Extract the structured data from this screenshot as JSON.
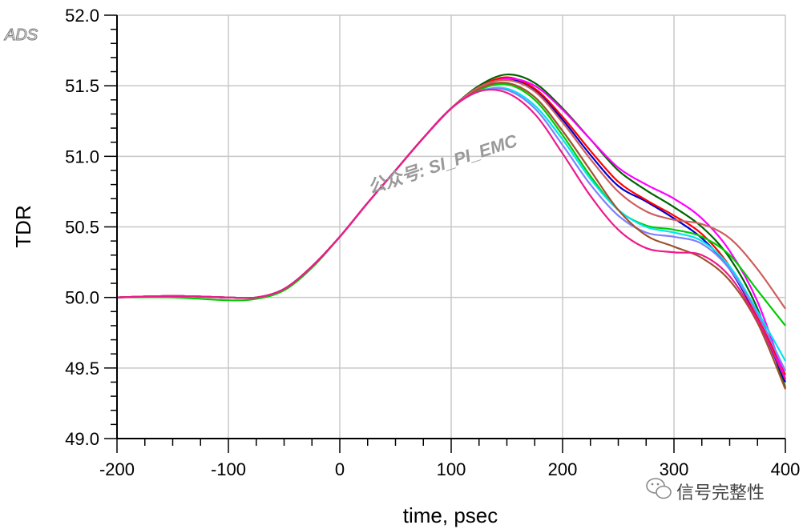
{
  "logo": "ADS",
  "watermark": "公众号: SI_PI_EMC",
  "wechat_tag": "信号完整性",
  "chart_data": {
    "type": "line",
    "xlabel": "time, psec",
    "ylabel": "TDR",
    "xlim": [
      -200,
      400
    ],
    "ylim": [
      49.0,
      52.0
    ],
    "xticks": [
      -200,
      -100,
      0,
      100,
      200,
      300,
      400
    ],
    "yticks": [
      49.0,
      49.5,
      50.0,
      50.5,
      51.0,
      51.5,
      52.0
    ],
    "ytick_labels": [
      "49.0",
      "49.5",
      "50.0",
      "50.5",
      "51.0",
      "51.5",
      "52.0"
    ],
    "grid": true,
    "series": [
      {
        "color": "#006400",
        "points": [
          [
            -200,
            50.0
          ],
          [
            -150,
            50.01
          ],
          [
            -100,
            50.0
          ],
          [
            -75,
            50.0
          ],
          [
            -50,
            50.06
          ],
          [
            -25,
            50.22
          ],
          [
            0,
            50.43
          ],
          [
            25,
            50.67
          ],
          [
            50,
            50.9
          ],
          [
            75,
            51.13
          ],
          [
            100,
            51.34
          ],
          [
            125,
            51.5
          ],
          [
            150,
            51.58
          ],
          [
            175,
            51.52
          ],
          [
            200,
            51.34
          ],
          [
            225,
            51.12
          ],
          [
            250,
            50.9
          ],
          [
            275,
            50.76
          ],
          [
            300,
            50.64
          ],
          [
            325,
            50.5
          ],
          [
            350,
            50.28
          ],
          [
            375,
            49.92
          ],
          [
            400,
            49.36
          ]
        ]
      },
      {
        "color": "#0000cd",
        "points": [
          [
            -200,
            50.0
          ],
          [
            -150,
            50.01
          ],
          [
            -100,
            50.0
          ],
          [
            -75,
            50.0
          ],
          [
            -50,
            50.06
          ],
          [
            -25,
            50.22
          ],
          [
            0,
            50.43
          ],
          [
            25,
            50.67
          ],
          [
            50,
            50.9
          ],
          [
            75,
            51.13
          ],
          [
            100,
            51.34
          ],
          [
            125,
            51.49
          ],
          [
            150,
            51.55
          ],
          [
            175,
            51.47
          ],
          [
            200,
            51.26
          ],
          [
            225,
            51.01
          ],
          [
            250,
            50.79
          ],
          [
            275,
            50.68
          ],
          [
            300,
            50.56
          ],
          [
            325,
            50.42
          ],
          [
            350,
            50.2
          ],
          [
            375,
            49.85
          ],
          [
            400,
            49.4
          ]
        ]
      },
      {
        "color": "#ff0000",
        "points": [
          [
            -200,
            50.0
          ],
          [
            -150,
            50.01
          ],
          [
            -100,
            50.0
          ],
          [
            -75,
            50.0
          ],
          [
            -50,
            50.06
          ],
          [
            -25,
            50.22
          ],
          [
            0,
            50.43
          ],
          [
            25,
            50.67
          ],
          [
            50,
            50.9
          ],
          [
            75,
            51.13
          ],
          [
            100,
            51.34
          ],
          [
            125,
            51.49
          ],
          [
            150,
            51.56
          ],
          [
            175,
            51.48
          ],
          [
            200,
            51.28
          ],
          [
            225,
            51.04
          ],
          [
            250,
            50.82
          ],
          [
            275,
            50.69
          ],
          [
            300,
            50.58
          ],
          [
            325,
            50.45
          ],
          [
            350,
            50.22
          ],
          [
            375,
            49.86
          ],
          [
            400,
            49.45
          ]
        ]
      },
      {
        "color": "#ff00ff",
        "points": [
          [
            -200,
            50.0
          ],
          [
            -150,
            50.01
          ],
          [
            -100,
            50.0
          ],
          [
            -75,
            50.0
          ],
          [
            -50,
            50.06
          ],
          [
            -25,
            50.22
          ],
          [
            0,
            50.43
          ],
          [
            25,
            50.67
          ],
          [
            50,
            50.9
          ],
          [
            75,
            51.13
          ],
          [
            100,
            51.34
          ],
          [
            125,
            51.48
          ],
          [
            150,
            51.55
          ],
          [
            175,
            51.5
          ],
          [
            200,
            51.33
          ],
          [
            225,
            51.12
          ],
          [
            250,
            50.92
          ],
          [
            275,
            50.8
          ],
          [
            300,
            50.7
          ],
          [
            325,
            50.56
          ],
          [
            350,
            50.33
          ],
          [
            375,
            49.97
          ],
          [
            400,
            49.42
          ]
        ]
      },
      {
        "color": "#00cc00",
        "points": [
          [
            -200,
            50.0
          ],
          [
            -150,
            50.0
          ],
          [
            -100,
            49.98
          ],
          [
            -75,
            49.99
          ],
          [
            -50,
            50.05
          ],
          [
            -25,
            50.21
          ],
          [
            0,
            50.43
          ],
          [
            25,
            50.67
          ],
          [
            50,
            50.9
          ],
          [
            75,
            51.13
          ],
          [
            100,
            51.34
          ],
          [
            125,
            51.47
          ],
          [
            150,
            51.51
          ],
          [
            175,
            51.4
          ],
          [
            200,
            51.15
          ],
          [
            225,
            50.86
          ],
          [
            250,
            50.62
          ],
          [
            275,
            50.51
          ],
          [
            300,
            50.48
          ],
          [
            325,
            50.43
          ],
          [
            350,
            50.3
          ],
          [
            375,
            50.05
          ],
          [
            400,
            49.8
          ]
        ]
      },
      {
        "color": "#00e5ee",
        "points": [
          [
            -200,
            50.0
          ],
          [
            -150,
            50.01
          ],
          [
            -100,
            50.0
          ],
          [
            -75,
            50.0
          ],
          [
            -50,
            50.06
          ],
          [
            -25,
            50.22
          ],
          [
            0,
            50.43
          ],
          [
            25,
            50.67
          ],
          [
            50,
            50.9
          ],
          [
            75,
            51.13
          ],
          [
            100,
            51.34
          ],
          [
            125,
            51.46
          ],
          [
            150,
            51.48
          ],
          [
            175,
            51.36
          ],
          [
            200,
            51.12
          ],
          [
            225,
            50.84
          ],
          [
            250,
            50.62
          ],
          [
            275,
            50.5
          ],
          [
            300,
            50.46
          ],
          [
            325,
            50.4
          ],
          [
            350,
            50.22
          ],
          [
            375,
            49.9
          ],
          [
            400,
            49.55
          ]
        ]
      },
      {
        "color": "#8080ff",
        "points": [
          [
            -200,
            50.0
          ],
          [
            -150,
            50.01
          ],
          [
            -100,
            50.0
          ],
          [
            -75,
            50.0
          ],
          [
            -50,
            50.06
          ],
          [
            -25,
            50.22
          ],
          [
            0,
            50.43
          ],
          [
            25,
            50.67
          ],
          [
            50,
            50.9
          ],
          [
            75,
            51.13
          ],
          [
            100,
            51.34
          ],
          [
            125,
            51.46
          ],
          [
            150,
            51.47
          ],
          [
            175,
            51.34
          ],
          [
            200,
            51.08
          ],
          [
            225,
            50.8
          ],
          [
            250,
            50.58
          ],
          [
            275,
            50.46
          ],
          [
            300,
            50.43
          ],
          [
            325,
            50.38
          ],
          [
            350,
            50.2
          ],
          [
            375,
            49.88
          ],
          [
            400,
            49.48
          ]
        ]
      },
      {
        "color": "#a0522d",
        "points": [
          [
            -200,
            50.0
          ],
          [
            -150,
            50.01
          ],
          [
            -100,
            50.0
          ],
          [
            -75,
            50.0
          ],
          [
            -50,
            50.06
          ],
          [
            -25,
            50.22
          ],
          [
            0,
            50.43
          ],
          [
            25,
            50.67
          ],
          [
            50,
            50.9
          ],
          [
            75,
            51.13
          ],
          [
            100,
            51.34
          ],
          [
            125,
            51.48
          ],
          [
            150,
            51.52
          ],
          [
            175,
            51.42
          ],
          [
            200,
            51.18
          ],
          [
            225,
            50.9
          ],
          [
            250,
            50.62
          ],
          [
            275,
            50.44
          ],
          [
            300,
            50.36
          ],
          [
            325,
            50.28
          ],
          [
            350,
            50.12
          ],
          [
            375,
            49.82
          ],
          [
            400,
            49.35
          ]
        ]
      },
      {
        "color": "#cd6060",
        "points": [
          [
            -200,
            50.0
          ],
          [
            -150,
            50.01
          ],
          [
            -100,
            50.0
          ],
          [
            -75,
            50.0
          ],
          [
            -50,
            50.06
          ],
          [
            -25,
            50.22
          ],
          [
            0,
            50.43
          ],
          [
            25,
            50.67
          ],
          [
            50,
            50.9
          ],
          [
            75,
            51.13
          ],
          [
            100,
            51.34
          ],
          [
            125,
            51.49
          ],
          [
            150,
            51.54
          ],
          [
            175,
            51.46
          ],
          [
            200,
            51.24
          ],
          [
            225,
            50.98
          ],
          [
            250,
            50.75
          ],
          [
            275,
            50.61
          ],
          [
            300,
            50.55
          ],
          [
            325,
            50.52
          ],
          [
            350,
            50.42
          ],
          [
            375,
            50.2
          ],
          [
            400,
            49.92
          ]
        ]
      },
      {
        "color": "#ee1a8c",
        "points": [
          [
            -200,
            50.0
          ],
          [
            -150,
            50.01
          ],
          [
            -100,
            50.0
          ],
          [
            -75,
            50.0
          ],
          [
            -50,
            50.06
          ],
          [
            -25,
            50.22
          ],
          [
            0,
            50.43
          ],
          [
            25,
            50.67
          ],
          [
            50,
            50.9
          ],
          [
            75,
            51.13
          ],
          [
            100,
            51.34
          ],
          [
            125,
            51.46
          ],
          [
            150,
            51.45
          ],
          [
            175,
            51.3
          ],
          [
            200,
            51.02
          ],
          [
            225,
            50.72
          ],
          [
            250,
            50.48
          ],
          [
            275,
            50.35
          ],
          [
            300,
            50.32
          ],
          [
            325,
            50.3
          ],
          [
            350,
            50.15
          ],
          [
            375,
            49.84
          ],
          [
            400,
            49.42
          ]
        ]
      }
    ]
  }
}
